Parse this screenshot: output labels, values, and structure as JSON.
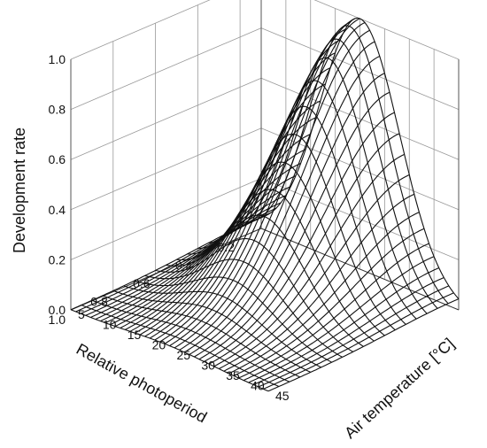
{
  "chart_data": {
    "type": "surface",
    "title": "",
    "zlabel": "Development rate",
    "xlabel": "Air temperature [°C]",
    "ylabel": "Relative photoperiod",
    "zlim": [
      0,
      1
    ],
    "xlim": [
      5,
      45
    ],
    "ylim": [
      0.1,
      1.0
    ],
    "z_ticks": [
      "0.0",
      "0.2",
      "0.4",
      "0.6",
      "0.8",
      "1.0"
    ],
    "x_ticks": [
      "5",
      "10",
      "15",
      "20",
      "25",
      "30",
      "35",
      "40",
      "45"
    ],
    "y_ticks": [
      "0.2",
      "0.4",
      "0.6",
      "0.8",
      "1.0"
    ],
    "surface": {
      "function": "gaussian",
      "peak_value": 1.0,
      "peak_temperature": 25,
      "peak_photoperiod": 0.1,
      "temperature_sigma": 8,
      "photoperiod_sigma": 0.32
    },
    "grid": true,
    "line_color": "#111111",
    "wall_color": "#999999"
  }
}
